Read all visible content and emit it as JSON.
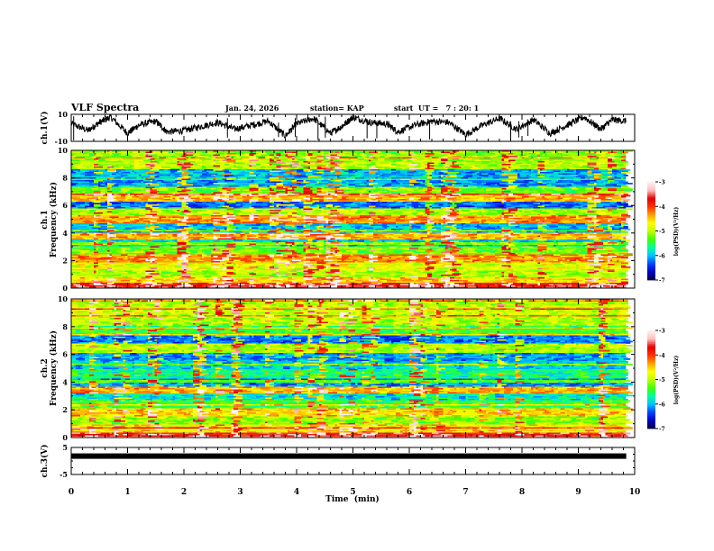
{
  "header": {
    "title": "VLF Spectra",
    "date": "Jan. 24, 2026",
    "station": "station= KAP",
    "start": "start  UT =   7 : 20: 1"
  },
  "chart_data": [
    {
      "type": "line",
      "name": "ch1-voltage",
      "ylabel": "ch.1(V)",
      "ylim": [
        -10,
        10
      ],
      "yticks": [
        "10",
        "-10"
      ],
      "xlim": [
        0,
        10
      ],
      "note": "noisy waveform, values estimated",
      "x": [
        0,
        0.3,
        0.5,
        0.7,
        1.0,
        1.2,
        1.5,
        1.7,
        2.0,
        2.3,
        2.6,
        2.9,
        3.2,
        3.5,
        3.8,
        4.0,
        4.3,
        4.6,
        4.8,
        5.0,
        5.3,
        5.6,
        5.8,
        6.1,
        6.4,
        6.7,
        7.0,
        7.3,
        7.6,
        7.9,
        8.2,
        8.5,
        8.8,
        9.1,
        9.4,
        9.6,
        9.85
      ],
      "y": [
        3,
        -2,
        4,
        8,
        -4,
        2,
        5,
        -3,
        -2,
        1,
        4,
        -1,
        2,
        5,
        -6,
        3,
        7,
        -4,
        1,
        8,
        4,
        3,
        -3,
        2,
        5,
        4,
        -5,
        2,
        7,
        -1,
        6,
        -4,
        2,
        8,
        -1,
        6,
        5
      ]
    },
    {
      "type": "heatmap",
      "name": "ch1-spectrogram",
      "ylabel_line1": "ch.1",
      "ylabel_line2": "Frequency (kHz)",
      "ylim": [
        0,
        10
      ],
      "yticks": [
        "0",
        "2",
        "4",
        "6",
        "8",
        "10"
      ],
      "xlim": [
        0,
        10
      ],
      "colorbar": {
        "label": "log(PSD)(V²/Hz)",
        "range": [
          -7,
          -3
        ],
        "ticks": [
          "-3",
          "-4",
          "-5",
          "-6",
          "-7"
        ]
      },
      "band_levels_kHz": [
        [
          0.2,
          -3.6
        ],
        [
          0.6,
          -4.5
        ],
        [
          1.0,
          -5.0
        ],
        [
          1.5,
          -4.8
        ],
        [
          2.2,
          -4.3
        ],
        [
          2.8,
          -5.2
        ],
        [
          3.3,
          -5.9
        ],
        [
          3.7,
          -4.4
        ],
        [
          4.4,
          -6.0
        ],
        [
          5.0,
          -4.3
        ],
        [
          5.5,
          -5.0
        ],
        [
          6.0,
          -6.2
        ],
        [
          6.6,
          -4.4
        ],
        [
          7.2,
          -5.2
        ],
        [
          7.6,
          -6.1
        ],
        [
          8.3,
          -6.0
        ],
        [
          9.0,
          -5.0
        ],
        [
          9.7,
          -5.1
        ]
      ]
    },
    {
      "type": "heatmap",
      "name": "ch2-spectrogram",
      "ylabel_line1": "ch.2",
      "ylabel_line2": "Frequency (kHz)",
      "ylim": [
        0,
        10
      ],
      "yticks": [
        "0",
        "2",
        "4",
        "6",
        "8",
        "10"
      ],
      "xlim": [
        0,
        10
      ],
      "colorbar": {
        "label": "log(PSD)(V²/Hz)",
        "range": [
          -7,
          -3
        ],
        "ticks": [
          "-3",
          "-4",
          "-5",
          "-6",
          "-7"
        ]
      },
      "band_levels_kHz": [
        [
          0.2,
          -3.7
        ],
        [
          0.6,
          -4.6
        ],
        [
          1.2,
          -5.1
        ],
        [
          1.8,
          -4.5
        ],
        [
          2.4,
          -5.4
        ],
        [
          3.0,
          -5.8
        ],
        [
          3.4,
          -4.4
        ],
        [
          3.9,
          -6.1
        ],
        [
          4.6,
          -5.6
        ],
        [
          5.2,
          -5.9
        ],
        [
          5.8,
          -6.1
        ],
        [
          6.4,
          -5.0
        ],
        [
          7.1,
          -6.2
        ],
        [
          7.6,
          -5.4
        ],
        [
          8.5,
          -5.0
        ],
        [
          9.2,
          -4.9
        ],
        [
          9.8,
          -5.0
        ]
      ]
    },
    {
      "type": "line",
      "name": "ch3-voltage",
      "ylabel": "ch.3(V)",
      "ylim": [
        -5,
        5
      ],
      "yticks": [
        "5",
        "-5"
      ],
      "xlim": [
        0,
        10
      ],
      "x": [
        0,
        9.85
      ],
      "y": [
        1.8,
        1.8
      ],
      "xlabel": "Time  (min)",
      "xticks": [
        "0",
        "1",
        "2",
        "3",
        "4",
        "5",
        "6",
        "7",
        "8",
        "9",
        "10"
      ]
    }
  ],
  "colors": {
    "cmap": [
      "#000040",
      "#0000c0",
      "#0040ff",
      "#00c0ff",
      "#00ffa0",
      "#40ff00",
      "#c0ff00",
      "#ffff00",
      "#ffa000",
      "#ff3000",
      "#e00000",
      "#ffc0c0",
      "#fff0f0"
    ]
  }
}
